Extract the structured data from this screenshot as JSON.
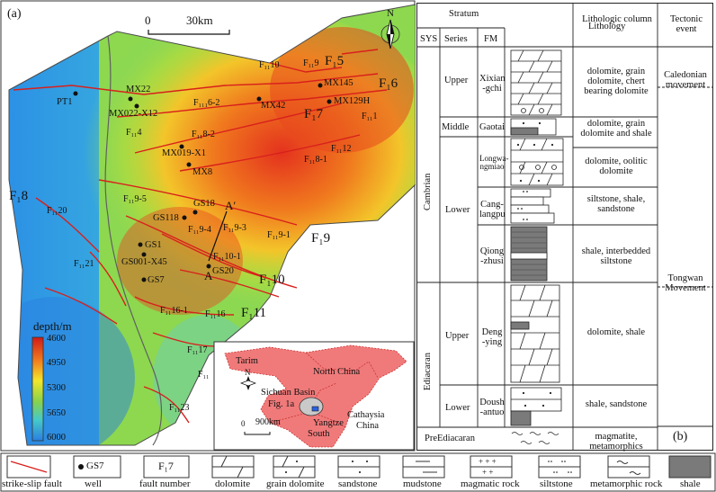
{
  "map": {
    "panel_label": "(a)",
    "scale_start": "0",
    "scale_end": "30km",
    "north": "N",
    "depth_title": "depth/m",
    "depth_ticks": [
      "4600",
      "4950",
      "5300",
      "5650",
      "6000"
    ],
    "section_a": "A",
    "section_a_prime": "A′",
    "wells": [
      "PT1",
      "MX22",
      "MX022-X12",
      "MX42",
      "MX145",
      "MX129H",
      "MX019-X1",
      "MX8",
      "GS18",
      "GS118",
      "GS1",
      "GS001-X45",
      "GS7",
      "GS20"
    ],
    "faults_main": [
      "F₁5",
      "F₁6",
      "F₁7",
      "F₁8",
      "F₁9",
      "F₁10",
      "F₁11"
    ],
    "faults_minor": [
      "F₁₁9",
      "F₁₁10",
      "F₁₁₁6-2",
      "F₁₁1",
      "F₁₁4",
      "F₁₁8-2",
      "F₁₁8-1",
      "F₁₁12",
      "F₁₁9-5",
      "F₁₁9-4",
      "F₁₁9-3",
      "F₁₁9-1",
      "F₁₁10-1",
      "F₁₁20",
      "F₁₁21",
      "F₁₁16-1",
      "F₁₁16",
      "F₁₁17",
      "F₁₁23",
      "F₁₁"
    ],
    "inset": {
      "tarim": "Tarim",
      "north_china": "North China",
      "sichuan": "Sichuan Basin",
      "fig": "Fig. 1a",
      "yangtze": "Yangtze",
      "south": "South",
      "cathaysia": "Cathaysia",
      "china": "China",
      "north": "N",
      "scale_start": "0",
      "scale_end": "900km"
    }
  },
  "column": {
    "panel_label": "(b)",
    "headers": {
      "stratum": "Stratum",
      "sys": "SYS",
      "series": "Series",
      "fm": "FM",
      "lithologic_column": "Lithologic column",
      "lithology": "Lithology",
      "tectonic": "Tectonic event"
    },
    "systems": [
      "Cambrian",
      "Ediacaran"
    ],
    "series": [
      "Upper",
      "Middle",
      "Lower",
      "Upper",
      "Lower"
    ],
    "formations": [
      "Xixian -gchi",
      "Gaotai",
      "Longwa- ngmiao",
      "Cang- langpu",
      "Qiong -zhusi",
      "Deng -ying",
      "Doush -antuo"
    ],
    "preediacaran": "PreEdiacaran",
    "lithologies": [
      "dolomite, grain dolomite, chert bearing dolomite",
      "dolomite, grain dolomite and shale",
      "dolomite, oolitic dolomite",
      "siltstone, shale, sandstone",
      "shale, interbedded siltstone",
      "dolomite, shale",
      "shale, sandstone",
      "magmatite, metamorphics"
    ],
    "tectonic_events": [
      "Caledonian movement",
      "Tongwan Movement"
    ]
  },
  "legend": [
    {
      "icon": "strike-slip-fault",
      "label": "strike-slip fault"
    },
    {
      "icon": "well",
      "label": "well",
      "sample": "GS7"
    },
    {
      "icon": "fault-number",
      "label": "fault number",
      "sample": "F₁7"
    },
    {
      "icon": "dolomite",
      "label": "dolomite"
    },
    {
      "icon": "grain-dolomite",
      "label": "grain dolomite"
    },
    {
      "icon": "sandstone",
      "label": "sandstone"
    },
    {
      "icon": "mudstone",
      "label": "mudstone"
    },
    {
      "icon": "magmatic-rock",
      "label": "magmatic rock"
    },
    {
      "icon": "siltstone",
      "label": "siltstone"
    },
    {
      "icon": "metamorphic-rock",
      "label": "metamorphic rock"
    },
    {
      "icon": "shale",
      "label": "shale"
    }
  ],
  "colors": {
    "fault": "#d8201c",
    "shale": "#7a7a7a",
    "inset_land": "#f07a7a"
  }
}
